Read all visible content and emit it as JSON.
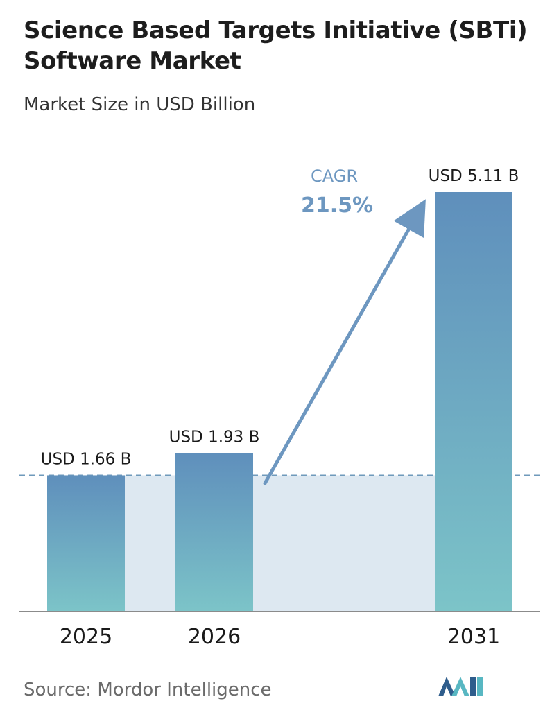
{
  "header": {
    "title": "Science Based Targets Initiative (SBTi) Software Market",
    "subtitle": "Market Size in USD Billion"
  },
  "chart_data": {
    "type": "bar",
    "categories": [
      "2025",
      "2026",
      "2031"
    ],
    "values": [
      1.66,
      1.93,
      5.11
    ],
    "value_labels": [
      "USD 1.66 B",
      "USD 1.93 B",
      "USD 5.11 B"
    ],
    "ylim": [
      0,
      5.11
    ],
    "grid": false,
    "reference_line_value": 1.66,
    "annotation": {
      "label": "CAGR",
      "value": "21.5%"
    }
  },
  "footer": {
    "source": "Source: Mordor Intelligence"
  },
  "colors": {
    "bar_top": "#5f8fbc",
    "bar_bottom": "#7cc4c8",
    "band": "#dde8f1",
    "dashed_line": "#6f9abb",
    "arrow": "#6d97c0",
    "axis": "#8b8b8b",
    "logo_dark": "#2f5d8c",
    "logo_light": "#58b7c2"
  },
  "logo_name": "mordor-intelligence-logo"
}
